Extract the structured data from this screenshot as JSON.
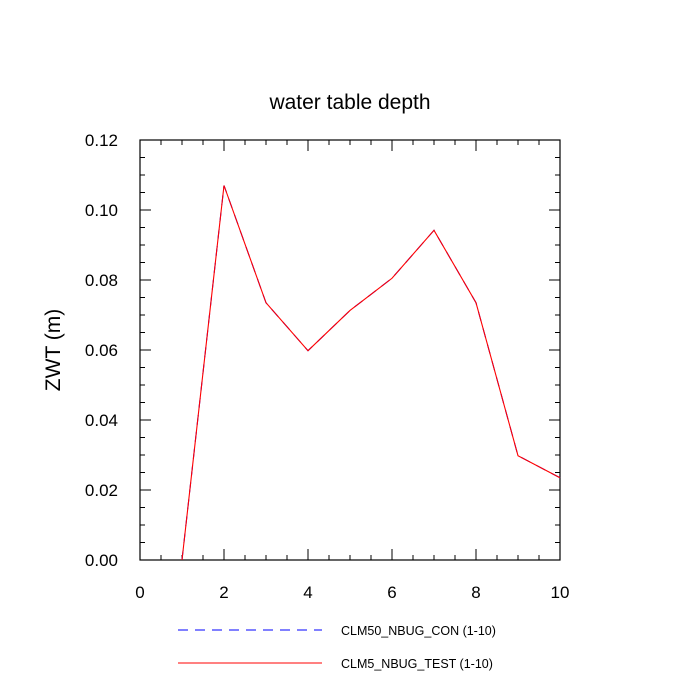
{
  "chart_data": {
    "type": "line",
    "title": "water table depth",
    "ylabel": "ZWT  (m)",
    "xlabel": "",
    "xlim": [
      0,
      10
    ],
    "ylim": [
      0,
      0.12
    ],
    "xticks": [
      0,
      2,
      4,
      6,
      8,
      10
    ],
    "yticks": [
      0.0,
      0.02,
      0.04,
      0.06,
      0.08,
      0.1,
      0.12
    ],
    "xtick_labels": [
      "0",
      "2",
      "4",
      "6",
      "8",
      "10"
    ],
    "ytick_labels": [
      "0.00",
      "0.02",
      "0.04",
      "0.06",
      "0.08",
      "0.10",
      "0.12"
    ],
    "grid": false,
    "legend_position": "bottom",
    "x": [
      1,
      2,
      3,
      4,
      5,
      6,
      7,
      8,
      9,
      10
    ],
    "series": [
      {
        "name": "CLM50_NBUG_CON (1-10)",
        "color": "#0000ff",
        "dash": "dashed",
        "values": [
          0.0,
          0.107,
          0.0735,
          0.0598,
          0.0713,
          0.0805,
          0.0942,
          0.0735,
          0.0298,
          0.0235
        ]
      },
      {
        "name": "CLM5_NBUG_TEST (1-10)",
        "color": "#ff0000",
        "dash": "solid",
        "values": [
          0.0,
          0.107,
          0.0735,
          0.0598,
          0.0713,
          0.0805,
          0.0942,
          0.0735,
          0.0298,
          0.0235
        ]
      }
    ]
  }
}
